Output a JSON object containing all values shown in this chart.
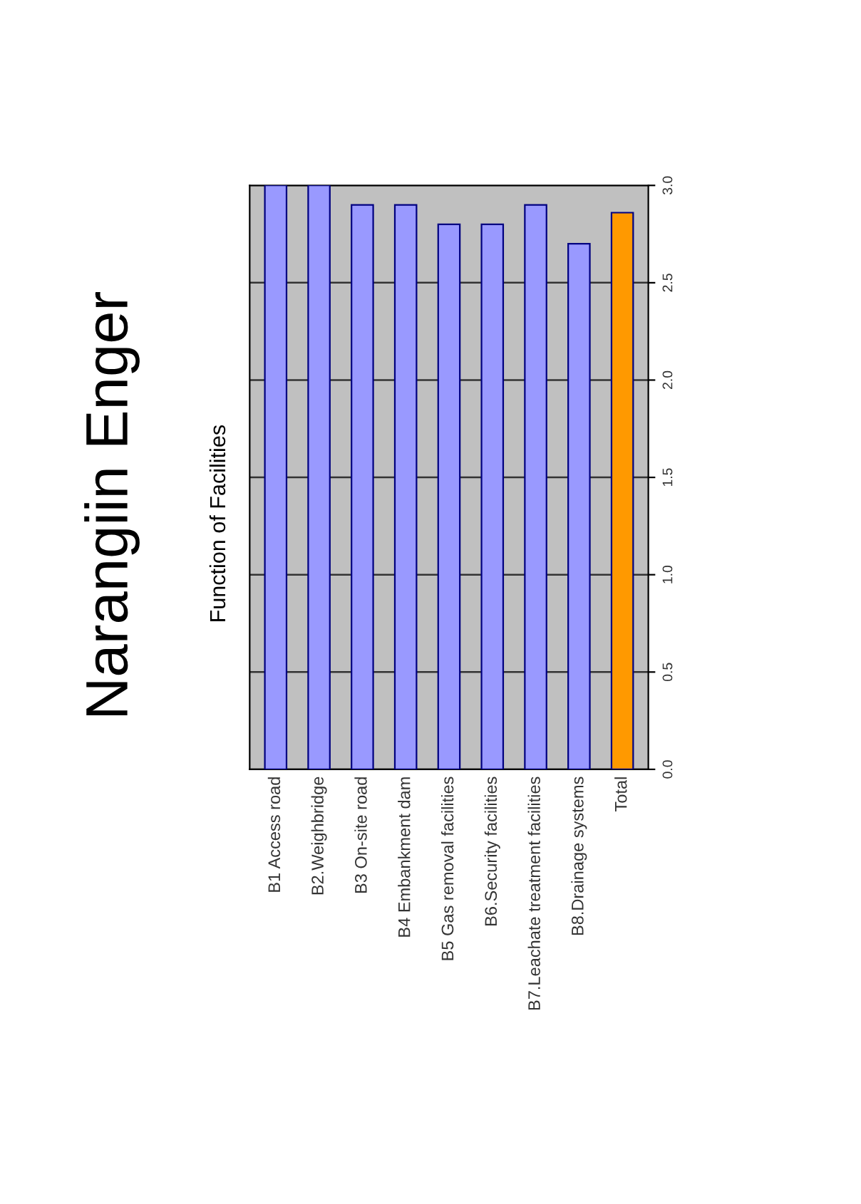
{
  "chart_data": {
    "type": "bar",
    "title": "Narangiin Enger",
    "subtitle": "Function of Facilities",
    "categories": [
      "B1 Access road",
      "B2.Weighbridge",
      "B3 On-site road",
      "B4 Embankment dam",
      "B5 Gas removal facilities",
      "B6.Security facilities",
      "B7.Leachate treatment facilities",
      "B8.Drainage systems",
      "Total"
    ],
    "values": [
      3.0,
      3.0,
      2.9,
      2.9,
      2.8,
      2.8,
      2.9,
      2.7,
      2.86
    ],
    "colors": [
      "#9999ff",
      "#9999ff",
      "#9999ff",
      "#9999ff",
      "#9999ff",
      "#9999ff",
      "#9999ff",
      "#9999ff",
      "#ff9900"
    ],
    "ylim": [
      0,
      3.0
    ],
    "yticks": [
      {
        "value": 0,
        "label": "0.0"
      },
      {
        "value": 0.5,
        "label": "0.5"
      },
      {
        "value": 1.0,
        "label": "1.0"
      },
      {
        "value": 1.5,
        "label": "1.5"
      },
      {
        "value": 2.0,
        "label": "2.0"
      },
      {
        "value": 2.5,
        "label": "2.5"
      },
      {
        "value": 3.0,
        "label": "3.0"
      }
    ],
    "grid": "y",
    "legend": false
  }
}
